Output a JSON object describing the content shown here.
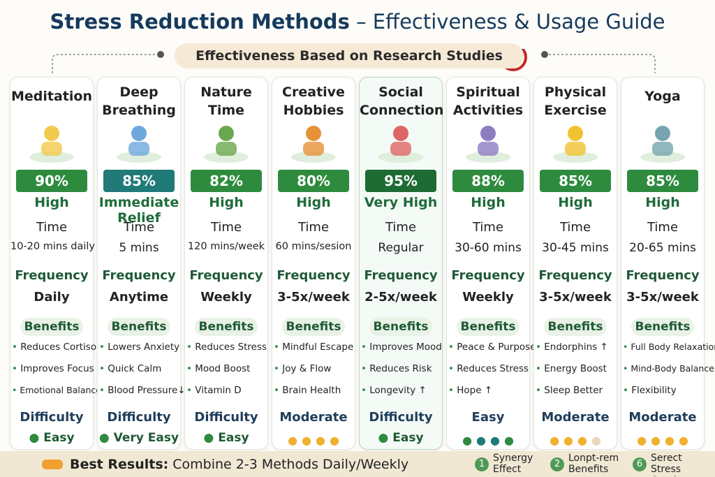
{
  "header": {
    "title_bold": "Stress Reduction Methods",
    "title_rest": "– Effectiveness & Usage Guide",
    "subtitle": "Effectiveness Based on Research Studies"
  },
  "labels": {
    "time": "Time",
    "frequency": "Frequency",
    "benefits": "Benefits"
  },
  "methods": [
    {
      "name": "Meditation",
      "effectiveness": "90%",
      "rating": "High",
      "time": "10-20 mins daily",
      "frequency": "Daily",
      "benefits": [
        "Reduces Cortisol",
        "Improves Focus",
        "Emotional Balance"
      ],
      "difficulty_heading": "Difficulty",
      "difficulty": "Easy"
    },
    {
      "name": "Deep Breathing",
      "effectiveness": "85%",
      "rating": "Immediate Relief",
      "time": "5 mins",
      "frequency": "Anytime",
      "benefits": [
        "Lowers Anxiety",
        "Quick Calm",
        "Blood Pressure↓"
      ],
      "difficulty_heading": "Difficulty",
      "difficulty": "Very Easy"
    },
    {
      "name": "Nature Time",
      "effectiveness": "82%",
      "rating": "High",
      "time": "120 mins/week",
      "frequency": "Weekly",
      "benefits": [
        "Reduces Stress",
        "Mood Boost",
        "Vitamin D"
      ],
      "difficulty_heading": "Difficulty",
      "difficulty": "Easy"
    },
    {
      "name": "Creative Hobbies",
      "effectiveness": "80%",
      "rating": "High",
      "time": "60 mins/sesion",
      "frequency": "3-5x/week",
      "benefits": [
        "Mindful Escape",
        "Joy & Flow",
        "Brain Health"
      ],
      "difficulty": "Moderate"
    },
    {
      "name": "Social Connection",
      "effectiveness": "95%",
      "rating": "Very High",
      "time": "Regular",
      "frequency": "2-5x/week",
      "benefits": [
        "Improves Mood",
        "Reduces Risk",
        "Longevity ↑"
      ],
      "difficulty_heading": "Difficulty",
      "difficulty": "Easy"
    },
    {
      "name": "Spiritual Activities",
      "effectiveness": "88%",
      "rating": "High",
      "time": "30-60 mins",
      "frequency": "Weekly",
      "benefits": [
        "Peace & Purpose",
        "Reduces Stress",
        "Hope ↑"
      ],
      "difficulty": "Easy"
    },
    {
      "name": "Physical Exercise",
      "effectiveness": "85%",
      "rating": "High",
      "time": "30-45 mins",
      "frequency": "3-5x/week",
      "benefits": [
        "Endorphins ↑",
        "Energy Boost",
        "Sleep Better"
      ],
      "difficulty": "Moderate"
    },
    {
      "name": "Yoga",
      "effectiveness": "85%",
      "rating": "High",
      "time": "20-65 mins",
      "frequency": "3-5x/week",
      "benefits": [
        "Full Body Relaxation",
        "Mind-Body Balance",
        "Flexibility"
      ],
      "difficulty": "Moderate"
    }
  ],
  "footer": {
    "bold": "Best Results:",
    "text": "Combine 2-3 Methods Daily/Weekly",
    "items": [
      {
        "number": "1",
        "text": "Synergy Effect"
      },
      {
        "number": "2",
        "text": "Lonpt-rem Benefits"
      },
      {
        "number": "6",
        "text": "Serect Stress Contiu"
      }
    ]
  }
}
